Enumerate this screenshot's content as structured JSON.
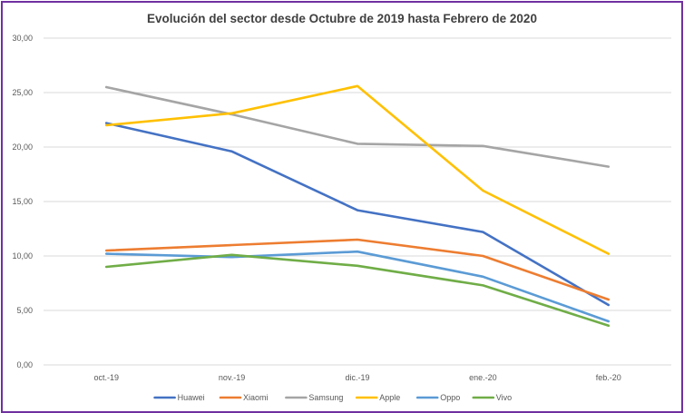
{
  "chart_data": {
    "type": "line",
    "title": "Evolución del sector desde Octubre de 2019 hasta Febrero de 2020",
    "xlabel": "",
    "ylabel": "",
    "categories": [
      "oct.-19",
      "nov.-19",
      "dic.-19",
      "ene.-20",
      "feb.-20"
    ],
    "ylim": [
      0,
      30
    ],
    "yticks": [
      "0,00",
      "5,00",
      "10,00",
      "15,00",
      "20,00",
      "25,00",
      "30,00"
    ],
    "grid": true,
    "legend_position": "bottom",
    "series": [
      {
        "name": "Huawei",
        "color": "#4472c4",
        "values": [
          22.2,
          19.6,
          14.2,
          12.2,
          5.5
        ]
      },
      {
        "name": "Xiaomi",
        "color": "#ed7d31",
        "values": [
          10.5,
          11.0,
          11.5,
          10.0,
          6.0
        ]
      },
      {
        "name": "Samsung",
        "color": "#a5a5a5",
        "values": [
          25.5,
          23.0,
          20.3,
          20.1,
          18.2
        ]
      },
      {
        "name": "Apple",
        "color": "#ffc000",
        "values": [
          22.0,
          23.1,
          25.6,
          16.0,
          10.2
        ]
      },
      {
        "name": "Oppo",
        "color": "#5b9bd5",
        "values": [
          10.2,
          9.9,
          10.4,
          8.1,
          4.0
        ]
      },
      {
        "name": "Vivo",
        "color": "#70ad47",
        "values": [
          9.0,
          10.1,
          9.1,
          7.3,
          3.6
        ]
      }
    ]
  }
}
